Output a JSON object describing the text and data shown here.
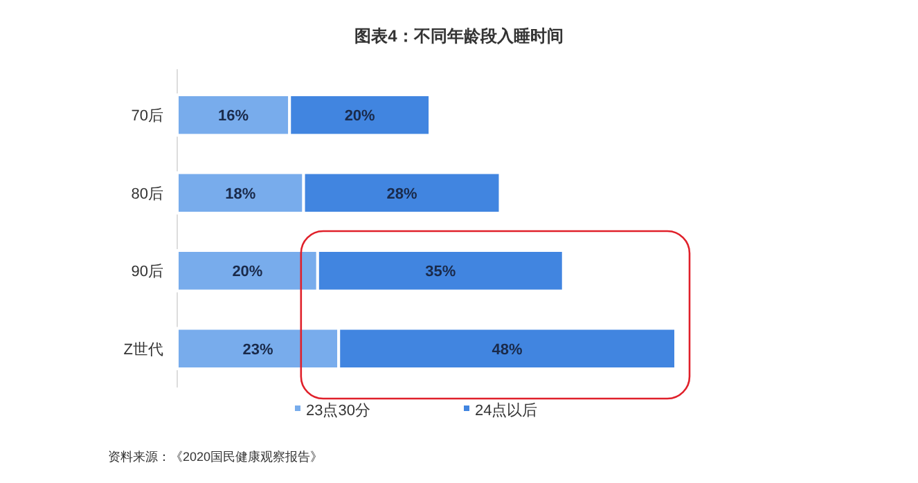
{
  "chart_data": {
    "type": "bar",
    "orientation": "horizontal",
    "stacked": true,
    "legend": "bottom",
    "title": "图表4：不同年龄段入睡时间",
    "categories": [
      "70后",
      "80后",
      "90后",
      "Z世代"
    ],
    "series": [
      {
        "name": "23点30分",
        "color": "#78acec",
        "values": [
          16,
          18,
          20,
          23
        ],
        "value_labels": [
          "16%",
          "18%",
          "20%",
          "23%"
        ]
      },
      {
        "name": "24点以后",
        "color": "#4185e0",
        "values": [
          20,
          28,
          35,
          48
        ],
        "value_labels": [
          "20%",
          "28%",
          "35%",
          "48%"
        ]
      }
    ],
    "annotations": [
      "资料来源：《2020国民健康观察报告》"
    ]
  }
}
